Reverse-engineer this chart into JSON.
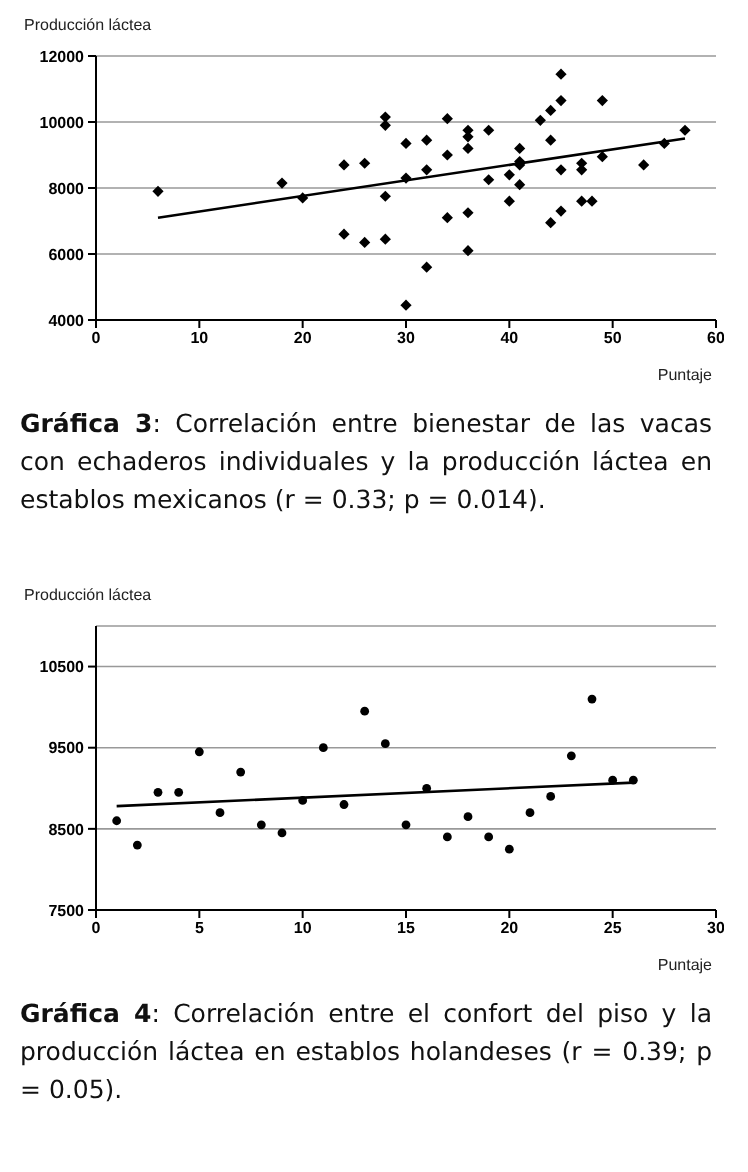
{
  "chart_data": [
    {
      "type": "scatter",
      "ylabel": "Producción láctea",
      "xlabel": "Puntaje",
      "xlim": [
        0,
        60
      ],
      "xticks": [
        0,
        10,
        20,
        30,
        40,
        50,
        60
      ],
      "ylim": [
        4000,
        12000
      ],
      "yticks": [
        4000,
        6000,
        8000,
        10000,
        12000
      ],
      "grid": "y",
      "series": [
        {
          "type": "scatter",
          "marker": "diamond",
          "color": "#000000",
          "x": [
            6,
            18,
            20,
            24,
            24,
            26,
            26,
            28,
            28,
            28,
            28,
            30,
            30,
            30,
            32,
            32,
            32,
            34,
            34,
            34,
            36,
            36,
            36,
            36,
            36,
            38,
            38,
            40,
            40,
            41,
            41,
            41,
            41,
            43,
            44,
            44,
            44,
            45,
            45,
            45,
            45,
            47,
            47,
            47,
            48,
            49,
            49,
            53,
            55,
            57
          ],
          "values": [
            7900,
            8150,
            7700,
            8700,
            6600,
            8750,
            6350,
            10150,
            9900,
            7750,
            6450,
            9350,
            8300,
            4450,
            9450,
            8550,
            5600,
            10100,
            9000,
            7100,
            9750,
            9550,
            9200,
            7250,
            6100,
            9750,
            8250,
            8400,
            7600,
            9200,
            8800,
            8700,
            8100,
            10050,
            10350,
            9450,
            6950,
            11450,
            10650,
            8550,
            7300,
            8750,
            8550,
            7600,
            7600,
            10650,
            8950,
            8700,
            9350,
            9750
          ]
        },
        {
          "type": "line",
          "marker": "none",
          "color": "#000000",
          "x": [
            6,
            57
          ],
          "values": [
            7100,
            9500
          ]
        }
      ],
      "annotations": [
        "Gráfica 3: Correlación entre bienestar de las vacas con echaderos individuales y la producción láctea en establos mexicanos (r = 0.33; p = 0.014)."
      ]
    },
    {
      "type": "scatter",
      "ylabel": "Producción láctea",
      "xlabel": "Puntaje",
      "xlim": [
        0,
        30
      ],
      "xticks": [
        0,
        5,
        10,
        15,
        20,
        25,
        30
      ],
      "ylim": [
        7500,
        11000
      ],
      "yticks": [
        7500,
        8500,
        9500,
        10500
      ],
      "grid": "y",
      "series": [
        {
          "type": "scatter",
          "marker": "circle",
          "color": "#000000",
          "x": [
            1,
            2,
            3,
            4,
            5,
            6,
            7,
            8,
            9,
            10,
            11,
            12,
            13,
            14,
            15,
            16,
            17,
            18,
            19,
            20,
            21,
            22,
            23,
            24,
            25,
            26
          ],
          "values": [
            8600,
            8300,
            8950,
            8950,
            9450,
            8700,
            9200,
            8550,
            8450,
            8850,
            9500,
            8800,
            9950,
            9550,
            8550,
            9000,
            8400,
            8650,
            8400,
            8250,
            8700,
            8900,
            9400,
            10100,
            9100,
            9100
          ]
        },
        {
          "type": "line",
          "marker": "none",
          "color": "#000000",
          "x": [
            1,
            26
          ],
          "values": [
            8780,
            9070
          ]
        }
      ],
      "annotations": [
        "Gráfica 4: Correlación entre el confort del piso y la producción láctea en establos holandeses (r = 0.39; p = 0.05)."
      ]
    }
  ]
}
